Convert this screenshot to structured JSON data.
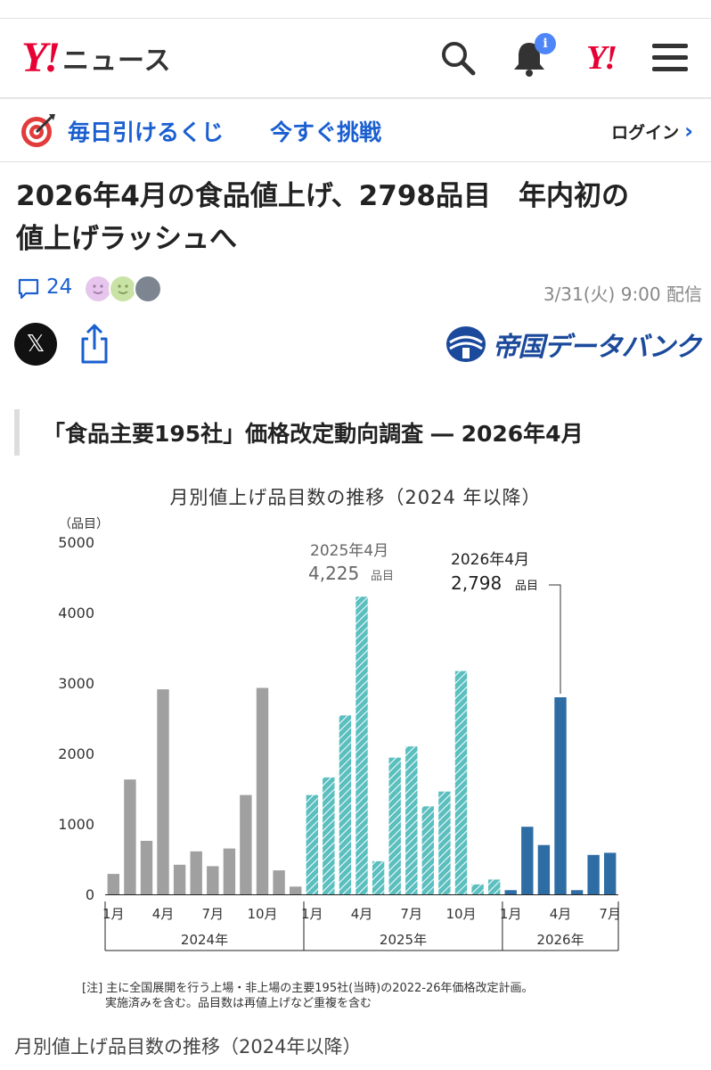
{
  "header": {
    "logo_mark": "Y!",
    "logo_text": "ニュース",
    "notification_badge": "i",
    "yahoo_mark": "Y!"
  },
  "promo": {
    "lottery_label": "毎日引けるくじ",
    "challenge_label": "今すぐ挑戦",
    "login_label": "ログイン"
  },
  "article": {
    "headline_line1": "2026年4月の食品値上げ、2798品目　年内初の",
    "headline_line2": "値上げラッシュへ",
    "comment_count": "24",
    "published": "3/31(火) 9:00 配信",
    "x_label": "𝕏",
    "source_name": "帝国データバンク",
    "section_title": "「食品主要195社」価格改定動向調査 ― 2026年4月",
    "caption": "月別値上げ品目数の推移（2024年以降）"
  },
  "chart_data": {
    "type": "bar",
    "title": "月別値上げ品目数の推移（2024 年以降）",
    "ylabel": "（品目）",
    "ylim": [
      0,
      5000
    ],
    "yticks": [
      "5000",
      "4000",
      "3000",
      "2000",
      "1000",
      "0"
    ],
    "xtick_labels": [
      "1月",
      "4月",
      "7月",
      "10月",
      "1月",
      "4月",
      "7月",
      "10月",
      "1月",
      "4月",
      "7月"
    ],
    "year_labels": [
      "2024年",
      "2025年",
      "2026年"
    ],
    "series": [
      {
        "name": "2024年",
        "color": "#a0a0a0",
        "values": [
          290,
          1630,
          760,
          2910,
          420,
          610,
          400,
          650,
          1410,
          2930,
          340,
          110
        ]
      },
      {
        "name": "2025年",
        "color": "#5bbfbf",
        "values": [
          1410,
          1660,
          2540,
          4225,
          470,
          1940,
          2100,
          1250,
          1460,
          3170,
          140,
          210
        ]
      },
      {
        "name": "2026年",
        "color": "#2e6da4",
        "values": [
          60,
          960,
          700,
          2798,
          60,
          560,
          590
        ]
      }
    ],
    "annotations": [
      {
        "line1": "2025年4月",
        "line2_value": "4,225",
        "line2_unit": "品目"
      },
      {
        "line1": "2026年4月",
        "line2_value": "2,798",
        "line2_unit": "品目"
      }
    ],
    "note_line1": "[注]  主に全国展開を行う上場・非上場の主要195社(当時)の2022-26年価格改定計画。",
    "note_line2": "実施済みを含む。品目数は再値上げなど重複を含む"
  }
}
